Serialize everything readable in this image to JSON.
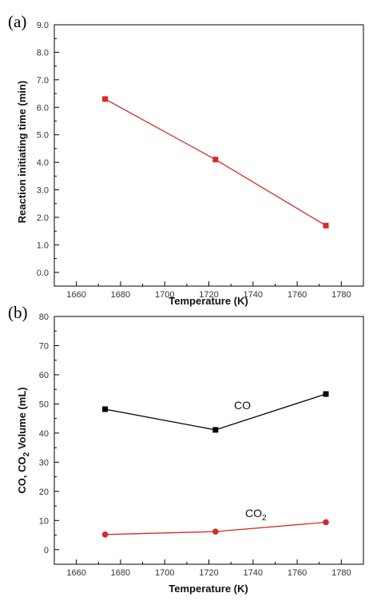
{
  "chart_data": [
    {
      "type": "line",
      "panel_label": "(a)",
      "xlabel": "Temperature (K)",
      "ylabel": "Reaction initiating time (min)",
      "xlim": [
        1650,
        1790
      ],
      "ylim": [
        -0.5,
        9.0
      ],
      "x_ticks": [
        "1660",
        "1680",
        "1700",
        "1720",
        "1740",
        "1760",
        "1780"
      ],
      "y_ticks": [
        "0.0",
        "1.0",
        "2.0",
        "3.0",
        "4.0",
        "5.0",
        "6.0",
        "7.0",
        "8.0",
        "9.0"
      ],
      "grid": false,
      "series": [
        {
          "color": "#d42a2a",
          "marker": "square",
          "x": [
            1673,
            1723,
            1773
          ],
          "y": [
            6.3,
            4.1,
            1.7
          ]
        }
      ]
    },
    {
      "type": "line",
      "panel_label": "(b)",
      "xlabel": "Temperature (K)",
      "ylabel": {
        "prefix": "CO, CO",
        "sub": "2",
        "suffix": " Volume (mL)"
      },
      "xlim": [
        1650,
        1790
      ],
      "ylim": [
        -5,
        80
      ],
      "x_ticks": [
        "1660",
        "1680",
        "1700",
        "1720",
        "1740",
        "1760",
        "1780"
      ],
      "y_ticks": [
        "0",
        "10",
        "20",
        "30",
        "40",
        "50",
        "60",
        "70",
        "80"
      ],
      "grid": false,
      "series": [
        {
          "name": "CO",
          "color": "#000000",
          "marker": "square",
          "x": [
            1673,
            1723,
            1773
          ],
          "y": [
            48.2,
            41.1,
            53.4
          ]
        },
        {
          "name": {
            "base": "CO",
            "sub": "2"
          },
          "color": "#d42a2a",
          "marker": "circle",
          "x": [
            1673,
            1723,
            1773
          ],
          "y": [
            5.2,
            6.2,
            9.4
          ]
        }
      ]
    }
  ]
}
